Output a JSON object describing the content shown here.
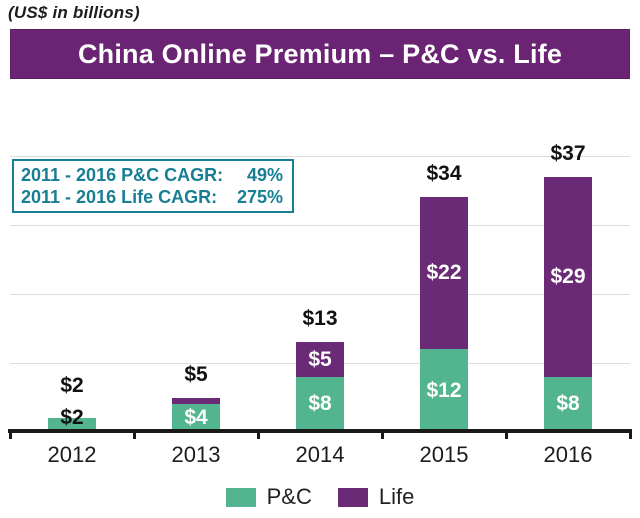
{
  "note": "(US$ in billions)",
  "title": "China Online Premium – P&C vs. Life",
  "cagr_box": {
    "rows": [
      {
        "label": "2011 - 2016 P&C CAGR:",
        "value": "49%"
      },
      {
        "label": "2011 - 2016 Life CAGR:",
        "value": "275%"
      }
    ]
  },
  "legend": [
    {
      "name": "P&C",
      "color": "#52b590"
    },
    {
      "name": "Life",
      "color": "#6a2a75"
    }
  ],
  "colors": {
    "banner_purple": "#6a2473",
    "bar_green": "#52b590",
    "bar_purple": "#6a2a75",
    "teal_text": "#177e93",
    "gridline": "#dddddd",
    "axis": "#1a1a1a"
  },
  "chart_data": {
    "type": "bar",
    "stacked": true,
    "title": "China Online Premium – P&C vs. Life",
    "ylabel": "US$ in billions",
    "categories": [
      "2012",
      "2013",
      "2014",
      "2015",
      "2016"
    ],
    "series": [
      {
        "name": "P&C",
        "color": "#52b590",
        "values": [
          2,
          4,
          8,
          12,
          8
        ]
      },
      {
        "name": "Life",
        "color": "#6a2a75",
        "values": [
          0,
          1,
          5,
          22,
          29
        ]
      }
    ],
    "totals": [
      2,
      5,
      13,
      34,
      37
    ],
    "total_labels": [
      "$2",
      "$5",
      "$13",
      "$34",
      "$37"
    ],
    "segment_labels": [
      [
        "$2",
        null
      ],
      [
        "$4",
        null
      ],
      [
        "$8",
        "$5"
      ],
      [
        "$12",
        "$22"
      ],
      [
        "$8",
        "$29"
      ]
    ],
    "annotations": [
      "2011 - 2016 P&C CAGR: 49%",
      "2011 - 2016 Life CAGR: 275%"
    ],
    "ylim": [
      0,
      45
    ],
    "gridlines": [
      10,
      20,
      30,
      40
    ],
    "grid": true,
    "legend_position": "bottom"
  }
}
